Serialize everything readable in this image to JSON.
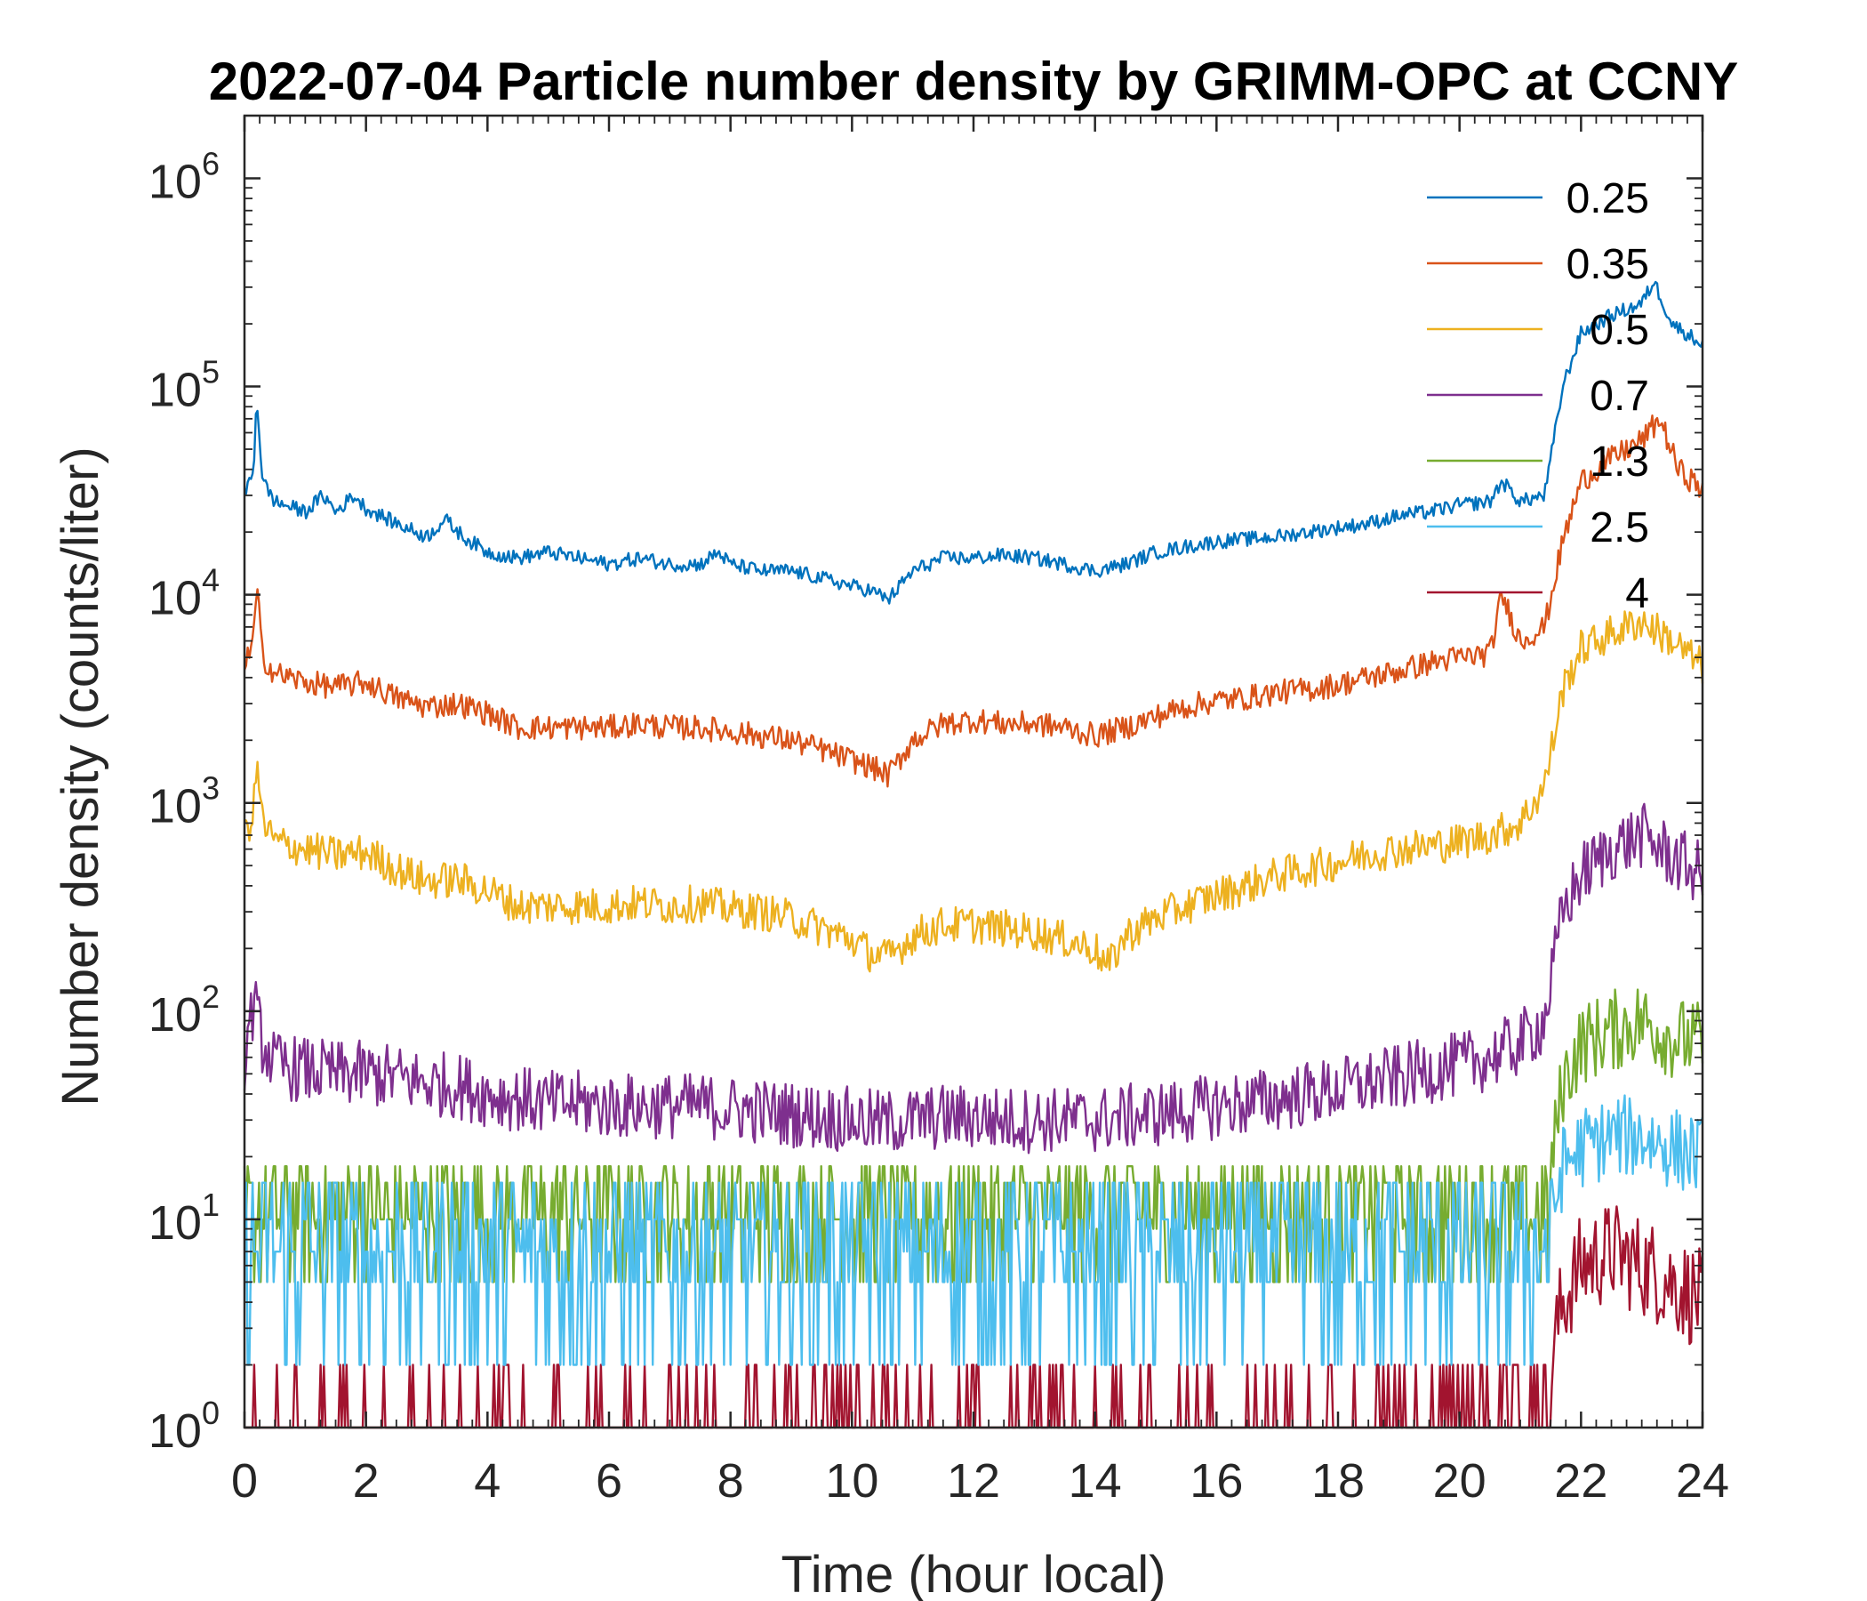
{
  "chart_data": {
    "type": "line",
    "title": "2022-07-04 Particle number density by GRIMM-OPC at CCNY",
    "xlabel": "Time (hour local)",
    "ylabel": "Number density (counts/liter)",
    "x_range": [
      0,
      24
    ],
    "y_range": [
      1,
      2000000
    ],
    "y_scale": "log",
    "x_ticks": [
      "0",
      "2",
      "4",
      "6",
      "8",
      "10",
      "12",
      "14",
      "16",
      "18",
      "20",
      "22",
      "24"
    ],
    "y_tick_values": [
      1,
      10,
      100,
      1000,
      10000,
      100000,
      1000000
    ],
    "y_tick_base": "10",
    "y_tick_exponents": [
      "0",
      "1",
      "2",
      "3",
      "4",
      "5",
      "6"
    ],
    "grid": false,
    "legend_position": "top-right",
    "series": [
      {
        "name": "0.25",
        "color": "#0072BD",
        "x": [
          0,
          0.15,
          0.2,
          0.3,
          0.5,
          1,
          1.3,
          1.5,
          1.8,
          2,
          2.5,
          3,
          3.3,
          3.6,
          4,
          4.5,
          5,
          5.5,
          6,
          6.5,
          7,
          7.5,
          7.8,
          8,
          8.5,
          9,
          9.5,
          10,
          10.3,
          10.6,
          11,
          11.5,
          12,
          12.5,
          13,
          13.5,
          14,
          14.5,
          15,
          15.5,
          16,
          16.5,
          17,
          17.5,
          18,
          18.5,
          19,
          19.5,
          20,
          20.5,
          20.7,
          21,
          21.4,
          21.7,
          22,
          22.5,
          23,
          23.2,
          23.5,
          24
        ],
        "y": [
          30000,
          40000,
          90000,
          35000,
          28000,
          25000,
          30000,
          25000,
          30000,
          26000,
          22000,
          19000,
          23000,
          19000,
          16000,
          15000,
          16000,
          15000,
          14000,
          15000,
          14000,
          14000,
          16000,
          14000,
          13000,
          13000,
          12000,
          11000,
          10500,
          9500,
          13000,
          15000,
          15000,
          15500,
          15000,
          14000,
          13000,
          14000,
          16000,
          17000,
          18000,
          18500,
          19000,
          20000,
          21000,
          22000,
          24000,
          25000,
          27000,
          28000,
          35000,
          28000,
          30000,
          100000,
          180000,
          220000,
          250000,
          320000,
          200000,
          160000
        ]
      },
      {
        "name": "0.35",
        "color": "#D95319",
        "x": [
          0,
          0.15,
          0.2,
          0.3,
          0.5,
          1,
          1.5,
          2,
          2.5,
          3,
          3.5,
          4,
          4.5,
          5,
          5.5,
          6,
          6.5,
          7,
          7.5,
          8,
          8.5,
          9,
          9.5,
          10,
          10.3,
          10.6,
          11,
          11.5,
          12,
          12.5,
          13,
          13.5,
          14,
          14.5,
          15,
          15.5,
          16,
          16.5,
          17,
          17.5,
          18,
          18.5,
          19,
          19.5,
          20,
          20.5,
          20.7,
          21,
          21.4,
          21.7,
          22,
          22.5,
          23,
          23.3,
          23.6,
          24
        ],
        "y": [
          4500,
          6000,
          11000,
          5000,
          4200,
          3800,
          3600,
          3800,
          3200,
          2900,
          3000,
          2700,
          2300,
          2300,
          2300,
          2300,
          2400,
          2300,
          2300,
          2200,
          2100,
          2000,
          1800,
          1600,
          1500,
          1350,
          2000,
          2400,
          2500,
          2400,
          2400,
          2300,
          2100,
          2300,
          2600,
          2900,
          3100,
          3200,
          3400,
          3500,
          3700,
          4000,
          4300,
          4700,
          5000,
          5200,
          10000,
          6000,
          7000,
          18000,
          35000,
          45000,
          55000,
          70000,
          40000,
          32000
        ]
      },
      {
        "name": "0.5",
        "color": "#EDB120",
        "x": [
          0,
          0.15,
          0.2,
          0.3,
          0.5,
          1,
          1.5,
          2,
          2.5,
          3,
          3.5,
          4,
          4.5,
          5,
          5.5,
          6,
          6.5,
          7,
          7.5,
          8,
          8.5,
          9,
          9.5,
          10,
          10.3,
          10.6,
          11,
          11.5,
          12,
          12.5,
          13,
          13.5,
          14,
          14.2,
          14.5,
          15,
          15.5,
          16,
          16.5,
          17,
          17.5,
          18,
          18.5,
          19,
          19.5,
          20,
          20.5,
          21,
          21.4,
          21.7,
          22,
          22.5,
          23,
          23.5,
          24
        ],
        "y": [
          700,
          900,
          1600,
          800,
          650,
          600,
          560,
          580,
          480,
          420,
          430,
          380,
          320,
          320,
          320,
          320,
          330,
          320,
          330,
          310,
          300,
          280,
          250,
          220,
          190,
          180,
          230,
          260,
          260,
          250,
          240,
          220,
          200,
          160,
          230,
          280,
          320,
          360,
          400,
          450,
          480,
          520,
          570,
          600,
          620,
          650,
          700,
          800,
          1200,
          3500,
          5500,
          6500,
          7500,
          6000,
          4500
        ]
      },
      {
        "name": "0.7",
        "color": "#7E2F8E",
        "x": [
          0,
          0.15,
          0.3,
          0.5,
          1,
          1.5,
          2,
          2.5,
          3,
          3.5,
          4,
          4.5,
          5,
          5.5,
          6,
          6.5,
          7,
          7.5,
          8,
          8.5,
          9,
          9.5,
          10,
          10.5,
          11,
          11.5,
          12,
          12.5,
          13,
          13.5,
          14,
          14.5,
          15,
          15.5,
          16,
          16.5,
          17,
          17.5,
          18,
          18.5,
          19,
          19.5,
          20,
          20.5,
          21,
          21.4,
          21.7,
          22,
          22.5,
          23,
          23.5,
          24
        ],
        "y": [
          60,
          110,
          70,
          55,
          52,
          50,
          50,
          48,
          45,
          44,
          40,
          38,
          36,
          36,
          35,
          35,
          35,
          35,
          34,
          33,
          32,
          31,
          30,
          29,
          30,
          31,
          31,
          30,
          30,
          30,
          30,
          31,
          32,
          33,
          35,
          36,
          38,
          40,
          42,
          45,
          48,
          52,
          55,
          60,
          70,
          90,
          300,
          450,
          600,
          700,
          550,
          450
        ]
      },
      {
        "name": "1.3",
        "color": "#77AC30",
        "x": [
          0,
          0.3,
          1,
          2,
          3,
          4,
          5,
          6,
          7,
          8,
          9,
          10,
          11,
          12,
          13,
          14,
          15,
          16,
          17,
          18,
          19,
          20,
          21,
          21.4,
          21.7,
          22,
          22.5,
          23,
          23.5,
          24
        ],
        "y": [
          15,
          11,
          10,
          10,
          10,
          9,
          9,
          9,
          9,
          9,
          9,
          9,
          9,
          9,
          9,
          9,
          9,
          9,
          9,
          9,
          10,
          10,
          11,
          11,
          45,
          70,
          80,
          90,
          75,
          70
        ]
      },
      {
        "name": "2.5",
        "color": "#4DBEEE",
        "x": [
          0,
          1,
          2,
          3,
          4,
          5,
          6,
          7,
          8,
          9,
          10,
          11,
          12,
          13,
          14,
          15,
          16,
          17,
          18,
          19,
          20,
          21,
          21.4,
          21.7,
          22,
          22.5,
          23,
          23.5,
          24
        ],
        "y": [
          7,
          7,
          7,
          7,
          7,
          7,
          7,
          7,
          7,
          7,
          7,
          7,
          7,
          7,
          7,
          7,
          7,
          7,
          7,
          7,
          7,
          7,
          7,
          18,
          22,
          25,
          25,
          22,
          20
        ]
      },
      {
        "name": "4",
        "color": "#A2142F",
        "x": [
          0,
          1,
          2,
          3,
          4,
          5,
          6,
          7,
          8,
          9,
          10,
          11,
          12,
          13,
          14,
          15,
          16,
          17,
          18,
          19,
          20,
          21,
          21.4,
          21.7,
          22,
          22.5,
          23,
          23.5,
          24
        ],
        "y": [
          1,
          1,
          1,
          1,
          1,
          1,
          1,
          1,
          1,
          1,
          1,
          1,
          1,
          1,
          1,
          1,
          1,
          1,
          1,
          1,
          1.2,
          1.3,
          1.5,
          4,
          6,
          7,
          6,
          5,
          4
        ]
      }
    ]
  }
}
